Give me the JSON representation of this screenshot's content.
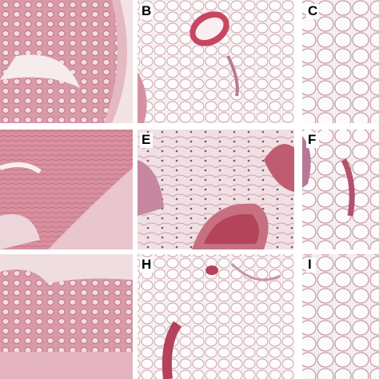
{
  "labels": [
    "B",
    "C",
    "E",
    "F",
    "H",
    "I"
  ]
}
